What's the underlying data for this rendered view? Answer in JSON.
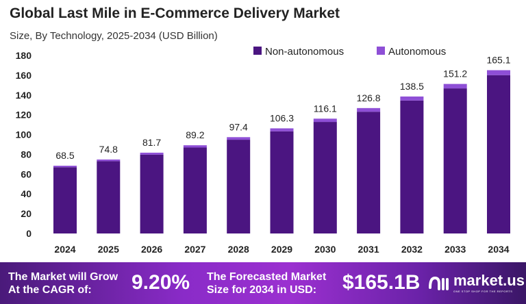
{
  "title": "Global Last Mile in E-Commerce Delivery Market",
  "subtitle": "Size, By Technology, 2025-2034 (USD Billion)",
  "chart_data": {
    "type": "bar",
    "stacked": true,
    "categories": [
      "2024",
      "2025",
      "2026",
      "2027",
      "2028",
      "2029",
      "2030",
      "2031",
      "2032",
      "2033",
      "2034"
    ],
    "series": [
      {
        "name": "Non-autonomous",
        "color": "#4b1581",
        "values": [
          67.0,
          73.1,
          79.7,
          86.9,
          94.8,
          103.3,
          112.8,
          123.1,
          134.4,
          146.7,
          160.1
        ]
      },
      {
        "name": "Autonomous",
        "color": "#8e4fd6",
        "values": [
          1.5,
          1.7,
          2.0,
          2.3,
          2.6,
          3.0,
          3.3,
          3.7,
          4.1,
          4.5,
          5.0
        ]
      }
    ],
    "totals": [
      "68.5",
      "74.8",
      "81.7",
      "89.2",
      "97.4",
      "106.3",
      "116.1",
      "126.8",
      "138.5",
      "151.2",
      "165.1"
    ],
    "ylim": [
      0,
      180
    ],
    "yticks": [
      "0",
      "20",
      "40",
      "60",
      "80",
      "100",
      "120",
      "140",
      "160",
      "180"
    ],
    "grid": false,
    "legend_position": "top-right"
  },
  "banner": {
    "cagr_label_1": "The Market will Grow",
    "cagr_label_2": "At the CAGR of:",
    "cagr_value": "9.20%",
    "forecast_label_1": "The Forecasted Market",
    "forecast_label_2": "Size for 2034 in USD:",
    "forecast_value": "$165.1B",
    "logo_name": "market.us",
    "logo_tagline": "ONE STOP SHOP FOR THE REPORTS"
  }
}
